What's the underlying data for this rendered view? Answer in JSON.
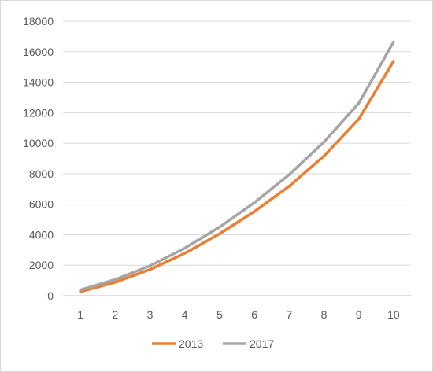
{
  "chart_data": {
    "type": "line",
    "title": "",
    "xlabel": "",
    "ylabel": "",
    "x": [
      1,
      2,
      3,
      4,
      5,
      6,
      7,
      8,
      9,
      10
    ],
    "xlim": [
      0.5,
      10.5
    ],
    "ylim": [
      0,
      18000
    ],
    "yticks": [
      0,
      2000,
      4000,
      6000,
      8000,
      10000,
      12000,
      14000,
      16000,
      18000
    ],
    "xticks": [
      1,
      2,
      3,
      4,
      5,
      6,
      7,
      8,
      9,
      10
    ],
    "grid": true,
    "legend_position": "bottom",
    "series": [
      {
        "name": "2013",
        "color": "#ed7d31",
        "values": [
          260,
          880,
          1720,
          2780,
          4060,
          5520,
          7180,
          9160,
          11580,
          15380
        ]
      },
      {
        "name": "2017",
        "color": "#a5a5a5",
        "values": [
          380,
          1060,
          1960,
          3120,
          4500,
          6100,
          7940,
          10080,
          12620,
          16640
        ]
      }
    ]
  }
}
